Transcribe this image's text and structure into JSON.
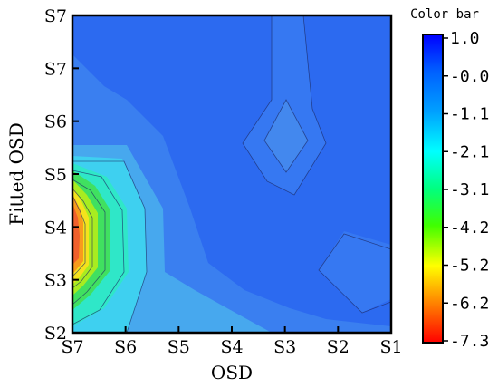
{
  "chart_data": {
    "type": "heatmap",
    "style": "filled-contour",
    "xlabel": "OSD",
    "ylabel": "Fitted OSD",
    "x_categories": [
      "S7",
      "S6",
      "S5",
      "S4",
      "S3",
      "S2",
      "S1"
    ],
    "y_categories": [
      "S2",
      "S3",
      "S4",
      "S5",
      "S6",
      "S7"
    ],
    "y_top_label": "S7",
    "colorbar": {
      "title": "Color bar",
      "ticks": [
        "1.0",
        "-0.0",
        "-1.1",
        "-2.1",
        "-3.1",
        "-4.2",
        "-5.2",
        "-6.2",
        "-7.3"
      ],
      "range": [
        -7.3,
        1.0
      ],
      "colors": [
        "#ff0000",
        "#ff8000",
        "#ffff00",
        "#00ff00",
        "#00ffff",
        "#0080ff",
        "#0000ff"
      ]
    },
    "background_color": "#2e6ff0",
    "grid": false,
    "notes_visible": []
  }
}
